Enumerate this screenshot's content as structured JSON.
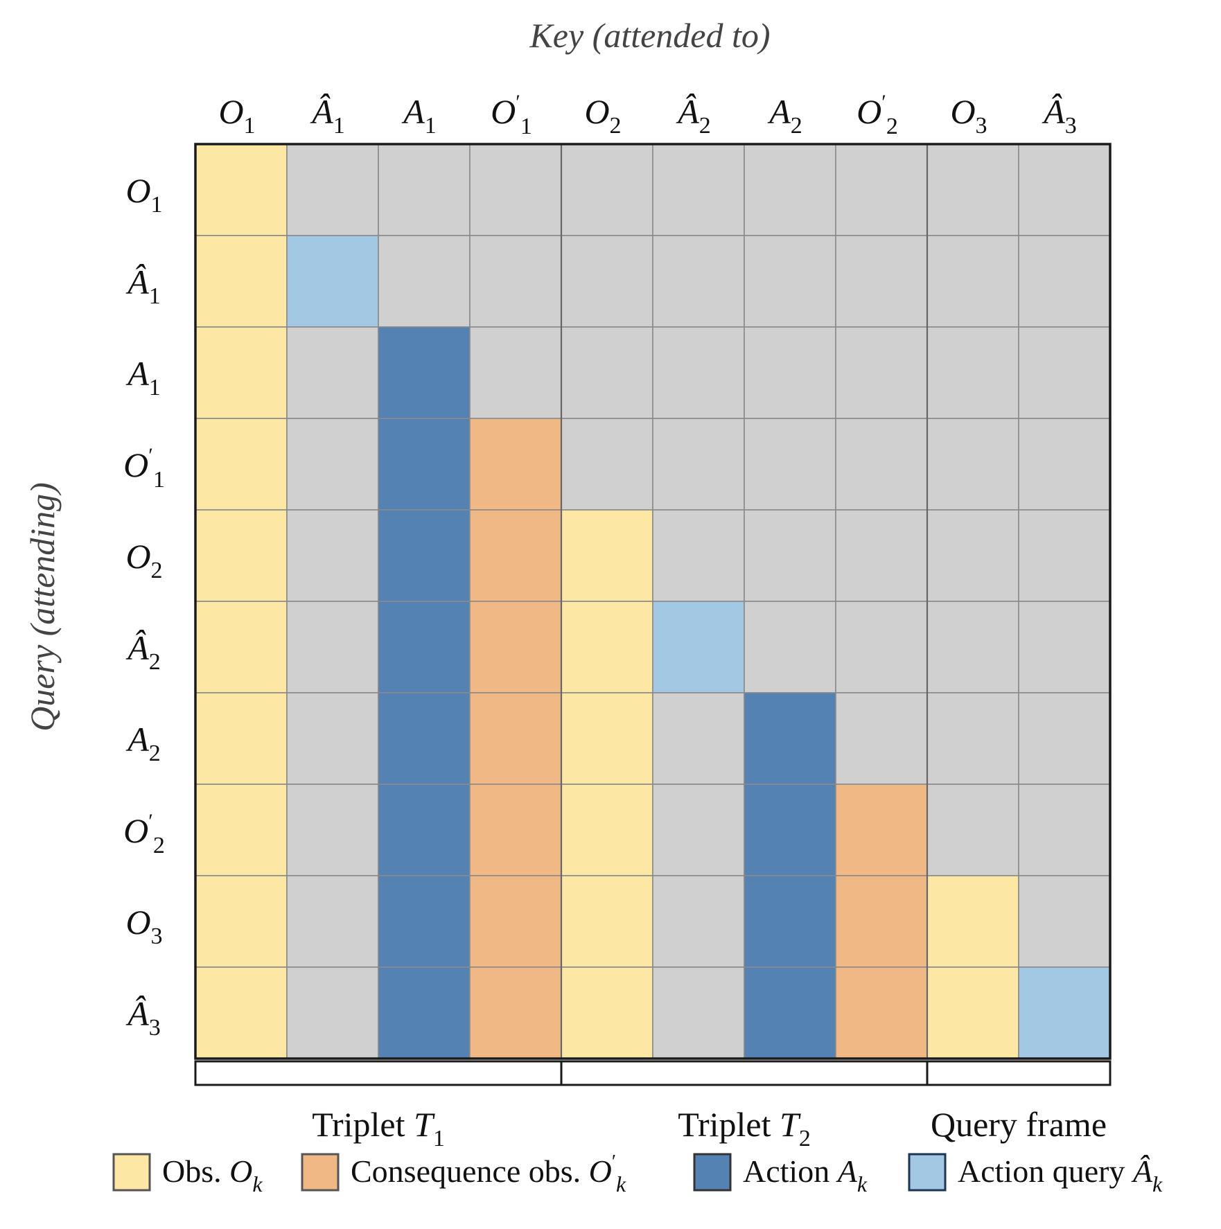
{
  "titles": {
    "key_axis": "Key (attended to)",
    "query_axis": "Query (attending)"
  },
  "tokens": [
    {
      "id": "O1",
      "base": "O",
      "sub": "1",
      "hat": false,
      "prime": false,
      "type": "obs"
    },
    {
      "id": "Ah1",
      "base": "A",
      "sub": "1",
      "hat": true,
      "prime": false,
      "type": "action_query"
    },
    {
      "id": "A1",
      "base": "A",
      "sub": "1",
      "hat": false,
      "prime": false,
      "type": "action"
    },
    {
      "id": "Op1",
      "base": "O",
      "sub": "1",
      "hat": false,
      "prime": true,
      "type": "consequence"
    },
    {
      "id": "O2",
      "base": "O",
      "sub": "2",
      "hat": false,
      "prime": false,
      "type": "obs"
    },
    {
      "id": "Ah2",
      "base": "A",
      "sub": "2",
      "hat": true,
      "prime": false,
      "type": "action_query"
    },
    {
      "id": "A2",
      "base": "A",
      "sub": "2",
      "hat": false,
      "prime": false,
      "type": "action"
    },
    {
      "id": "Op2",
      "base": "O",
      "sub": "2",
      "hat": false,
      "prime": true,
      "type": "consequence"
    },
    {
      "id": "O3",
      "base": "O",
      "sub": "3",
      "hat": false,
      "prime": false,
      "type": "obs"
    },
    {
      "id": "Ah3",
      "base": "A",
      "sub": "3",
      "hat": true,
      "prime": false,
      "type": "action_query"
    }
  ],
  "attention_mask": [
    [
      1,
      0,
      0,
      0,
      0,
      0,
      0,
      0,
      0,
      0
    ],
    [
      1,
      1,
      0,
      0,
      0,
      0,
      0,
      0,
      0,
      0
    ],
    [
      1,
      0,
      1,
      0,
      0,
      0,
      0,
      0,
      0,
      0
    ],
    [
      1,
      0,
      1,
      1,
      0,
      0,
      0,
      0,
      0,
      0
    ],
    [
      1,
      0,
      1,
      1,
      1,
      0,
      0,
      0,
      0,
      0
    ],
    [
      1,
      0,
      1,
      1,
      1,
      1,
      0,
      0,
      0,
      0
    ],
    [
      1,
      0,
      1,
      1,
      1,
      0,
      1,
      0,
      0,
      0
    ],
    [
      1,
      0,
      1,
      1,
      1,
      0,
      1,
      1,
      0,
      0
    ],
    [
      1,
      0,
      1,
      1,
      1,
      0,
      1,
      1,
      1,
      0
    ],
    [
      1,
      0,
      1,
      1,
      1,
      0,
      1,
      1,
      1,
      1
    ]
  ],
  "groups": [
    {
      "label": "Triplet ",
      "sym": "T",
      "sub": "1",
      "start": 0,
      "end": 3
    },
    {
      "label": "Triplet ",
      "sym": "T",
      "sub": "2",
      "start": 4,
      "end": 7
    },
    {
      "label": "Query frame",
      "sym": "",
      "sub": "",
      "start": 8,
      "end": 9
    }
  ],
  "legend": [
    {
      "type": "obs",
      "text": "Obs. ",
      "base": "O",
      "sub": "k",
      "hat": false,
      "prime": false
    },
    {
      "type": "consequence",
      "text": "Consequence obs. ",
      "base": "O",
      "sub": "k",
      "hat": false,
      "prime": true
    },
    {
      "type": "action",
      "text": "Action ",
      "base": "A",
      "sub": "k",
      "hat": false,
      "prime": false
    },
    {
      "type": "action_query",
      "text": "Action query ",
      "base": "A",
      "sub": "k",
      "hat": true,
      "prime": false
    }
  ],
  "colors": {
    "obs": "#FDE7A5",
    "consequence": "#F0B884",
    "action": "#5483B3",
    "action_query": "#A2C8E4",
    "masked": "#D0D0D0",
    "grid_line": "#8A8A8A",
    "border": "#1A1A1A"
  }
}
